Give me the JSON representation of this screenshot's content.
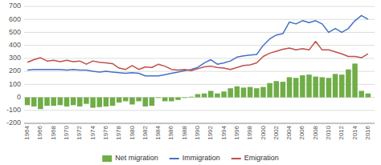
{
  "chart_data": {
    "type": "bar",
    "x": [
      1964,
      1965,
      1966,
      1967,
      1968,
      1969,
      1970,
      1971,
      1972,
      1973,
      1974,
      1975,
      1976,
      1977,
      1978,
      1979,
      1980,
      1981,
      1982,
      1983,
      1984,
      1985,
      1986,
      1987,
      1988,
      1989,
      1990,
      1991,
      1992,
      1993,
      1994,
      1995,
      1996,
      1997,
      1998,
      1999,
      2000,
      2001,
      2002,
      2003,
      2004,
      2005,
      2006,
      2007,
      2008,
      2009,
      2010,
      2011,
      2012,
      2013,
      2014,
      2015,
      2016
    ],
    "series": [
      {
        "name": "Net migration",
        "type": "bar",
        "color": "#70ad47",
        "values": [
          -60,
          -70,
          -90,
          -65,
          -65,
          -60,
          -70,
          -60,
          -70,
          -50,
          -80,
          -75,
          -70,
          -65,
          -40,
          -30,
          -55,
          -30,
          -70,
          -65,
          -5,
          -30,
          -30,
          -20,
          -5,
          5,
          25,
          30,
          50,
          30,
          45,
          70,
          85,
          75,
          80,
          70,
          80,
          110,
          125,
          120,
          155,
          150,
          170,
          175,
          160,
          155,
          150,
          180,
          175,
          215,
          260,
          50,
          30
        ]
      },
      {
        "name": "Immigration",
        "type": "line",
        "color": "#4472c4",
        "values": [
          210,
          215,
          215,
          215,
          215,
          215,
          210,
          215,
          210,
          210,
          200,
          195,
          200,
          195,
          190,
          185,
          190,
          185,
          165,
          165,
          165,
          175,
          185,
          195,
          205,
          215,
          230,
          265,
          290,
          255,
          265,
          280,
          310,
          320,
          325,
          330,
          400,
          450,
          480,
          490,
          580,
          565,
          590,
          575,
          590,
          565,
          500,
          530,
          500,
          530,
          590,
          630,
          600
        ]
      },
      {
        "name": "Emigration",
        "type": "line",
        "color": "#c0504d",
        "values": [
          270,
          290,
          305,
          280,
          285,
          275,
          285,
          275,
          280,
          255,
          280,
          270,
          265,
          260,
          225,
          215,
          245,
          215,
          235,
          230,
          255,
          240,
          215,
          210,
          215,
          205,
          220,
          235,
          240,
          230,
          225,
          215,
          230,
          245,
          250,
          265,
          315,
          340,
          355,
          370,
          380,
          365,
          375,
          365,
          430,
          365,
          365,
          350,
          335,
          315,
          315,
          305,
          335
        ]
      }
    ],
    "xlim": [
      1963.5,
      2017
    ],
    "xticks": [
      1964,
      1966,
      1968,
      1970,
      1972,
      1974,
      1976,
      1978,
      1980,
      1982,
      1984,
      1986,
      1988,
      1990,
      1992,
      1994,
      1996,
      1998,
      2000,
      2002,
      2004,
      2006,
      2008,
      2010,
      2012,
      2014,
      2016
    ],
    "ylim": [
      -200,
      700
    ],
    "yticks": [
      -200,
      -100,
      0,
      100,
      200,
      300,
      400,
      500,
      600,
      700
    ],
    "grid": true,
    "legend": "bottom"
  }
}
